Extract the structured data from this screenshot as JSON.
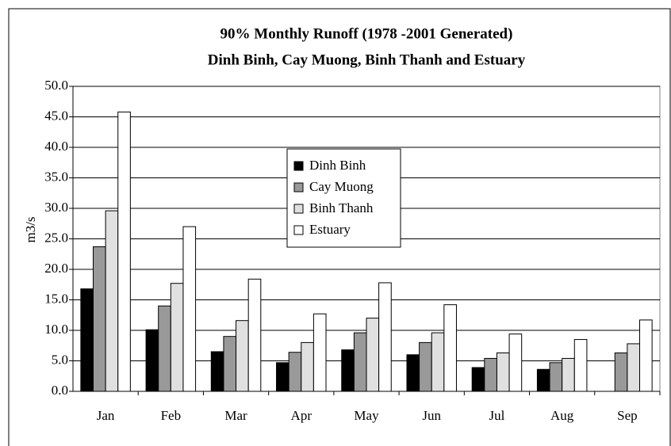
{
  "chart_data": {
    "type": "bar",
    "title": "90% Monthly Runoff (1978 -2001 Generated)",
    "subtitle": "Dinh Binh, Cay Muong, Binh Thanh and Estuary",
    "y_label": "m3/s",
    "categories": [
      "Jan",
      "Feb",
      "Mar",
      "Apr",
      "May",
      "Jun",
      "Jul",
      "Aug",
      "Sep"
    ],
    "series": [
      {
        "name": "Dinh Binh",
        "color": "#000000",
        "values": [
          16.8,
          10.1,
          6.5,
          4.7,
          6.8,
          6.0,
          3.9,
          3.6,
          null
        ]
      },
      {
        "name": "Cay Muong",
        "color": "#999999",
        "values": [
          23.7,
          14.0,
          9.0,
          6.4,
          9.6,
          8.0,
          5.4,
          4.7,
          6.3
        ]
      },
      {
        "name": "Binh Thanh",
        "color": "#e0e0e0",
        "values": [
          29.6,
          17.7,
          11.6,
          8.0,
          12.0,
          9.6,
          6.3,
          5.4,
          7.8
        ]
      },
      {
        "name": "Estuary",
        "color": "#ffffff",
        "values": [
          45.8,
          27.0,
          18.4,
          12.7,
          17.8,
          14.2,
          9.4,
          8.5,
          11.7
        ]
      }
    ],
    "ylim": [
      0,
      50
    ],
    "yticks": [
      {
        "value": 0,
        "label": "0.0"
      },
      {
        "value": 5,
        "label": "5.0"
      },
      {
        "value": 10,
        "label": "10.0"
      },
      {
        "value": 15,
        "label": "15.0"
      },
      {
        "value": 20,
        "label": "20.0"
      },
      {
        "value": 25,
        "label": "25.0"
      },
      {
        "value": 30,
        "label": "30.0"
      },
      {
        "value": 35,
        "label": "35.0"
      },
      {
        "value": 40,
        "label": "40.0"
      },
      {
        "value": 45,
        "label": "45.0"
      },
      {
        "value": 50,
        "label": "50.0"
      }
    ],
    "grid": true
  }
}
